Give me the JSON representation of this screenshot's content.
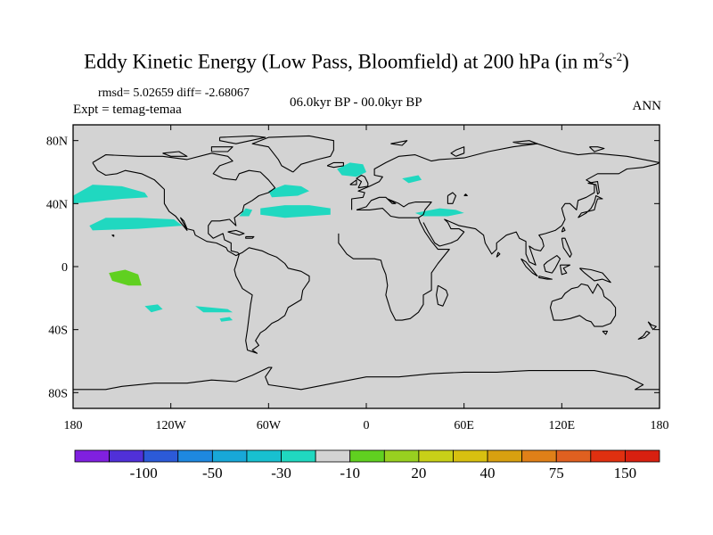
{
  "title": {
    "main": "Eddy Kinetic Energy (Low Pass, Bloomfield) at 200 hPa (in m",
    "sup1": "2",
    "mid": "s",
    "sup2": "-2",
    "end": ")"
  },
  "stats": "rmsd= 5.02659 diff= -2.68067",
  "expt": "Expt = temag-temaa",
  "period": "06.0kyr BP - 00.0kyr BP",
  "season": "ANN",
  "colors": {
    "land": "#d3d3d3",
    "ocean": "#d3d3d3",
    "coast": "#000000",
    "anomaly_negative_10": "#20d8c0",
    "anomaly_positive_20": "#60d020"
  },
  "chart_data": {
    "type": "heatmap",
    "projection": "cylindrical-equidistant",
    "xlim": [
      -180,
      180
    ],
    "ylim": [
      -90,
      90
    ],
    "x_ticks": [
      "180",
      "120W",
      "60W",
      "0",
      "60E",
      "120E",
      "180"
    ],
    "y_ticks": [
      "80N",
      "40N",
      "0",
      "40S",
      "80S"
    ],
    "colorbar": {
      "colors": [
        "#8020e0",
        "#5030d8",
        "#2c5ad8",
        "#1e88e0",
        "#18a8d8",
        "#18c0d0",
        "#20d8c0",
        "#d3d3d3",
        "#60d020",
        "#98d020",
        "#c8d018",
        "#d8c010",
        "#d8a010",
        "#e08018",
        "#e06020",
        "#e03010",
        "#d82010"
      ],
      "labels": [
        "-100",
        "-50",
        "-30",
        "-10",
        "20",
        "40",
        "75",
        "150"
      ]
    },
    "regions": [
      {
        "value_class": "-10",
        "points": [
          [
            -180,
            45
          ],
          [
            -168,
            52
          ],
          [
            -150,
            51
          ],
          [
            -136,
            47
          ],
          [
            -134,
            44
          ],
          [
            -150,
            43
          ],
          [
            -170,
            41
          ],
          [
            -180,
            40
          ]
        ]
      },
      {
        "value_class": "-10",
        "points": [
          [
            -170,
            26
          ],
          [
            -160,
            31
          ],
          [
            -140,
            31
          ],
          [
            -118,
            30
          ],
          [
            -113,
            26
          ],
          [
            -140,
            24
          ],
          [
            -168,
            23
          ]
        ]
      },
      {
        "value_class": "-10",
        "points": [
          [
            -60,
            48
          ],
          [
            -50,
            52
          ],
          [
            -40,
            51
          ],
          [
            -35,
            48
          ],
          [
            -42,
            45
          ],
          [
            -58,
            44
          ]
        ]
      },
      {
        "value_class": "-10",
        "points": [
          [
            -65,
            37
          ],
          [
            -50,
            39
          ],
          [
            -35,
            39
          ],
          [
            -22,
            37
          ],
          [
            -22,
            33
          ],
          [
            -50,
            31
          ],
          [
            -65,
            33
          ]
        ]
      },
      {
        "value_class": "-10",
        "points": [
          [
            -78,
            32
          ],
          [
            -74,
            37
          ],
          [
            -70,
            36
          ],
          [
            -72,
            32
          ]
        ]
      },
      {
        "value_class": "-10",
        "points": [
          [
            -18,
            62
          ],
          [
            -10,
            66
          ],
          [
            -2,
            65
          ],
          [
            0,
            60
          ],
          [
            -6,
            57
          ],
          [
            -15,
            58
          ]
        ]
      },
      {
        "value_class": "-10",
        "points": [
          [
            22,
            56
          ],
          [
            32,
            58
          ],
          [
            34,
            55
          ],
          [
            26,
            53
          ]
        ]
      },
      {
        "value_class": "-10",
        "points": [
          [
            30,
            34
          ],
          [
            45,
            37
          ],
          [
            55,
            36
          ],
          [
            60,
            34
          ],
          [
            50,
            32
          ],
          [
            35,
            32
          ]
        ]
      },
      {
        "value_class": "-10",
        "points": [
          [
            -136,
            -25
          ],
          [
            -128,
            -24
          ],
          [
            -125,
            -27
          ],
          [
            -132,
            -29
          ]
        ]
      },
      {
        "value_class": "-10",
        "points": [
          [
            -105,
            -25
          ],
          [
            -85,
            -27
          ],
          [
            -82,
            -29
          ],
          [
            -100,
            -29
          ]
        ]
      },
      {
        "value_class": "-10",
        "points": [
          [
            -90,
            -33
          ],
          [
            -84,
            -32
          ],
          [
            -82,
            -34
          ],
          [
            -89,
            -35
          ]
        ]
      },
      {
        "value_class": "20",
        "points": [
          [
            -158,
            -4
          ],
          [
            -148,
            -2
          ],
          [
            -140,
            -5
          ],
          [
            -138,
            -12
          ],
          [
            -146,
            -12
          ],
          [
            -156,
            -9
          ]
        ]
      }
    ]
  }
}
